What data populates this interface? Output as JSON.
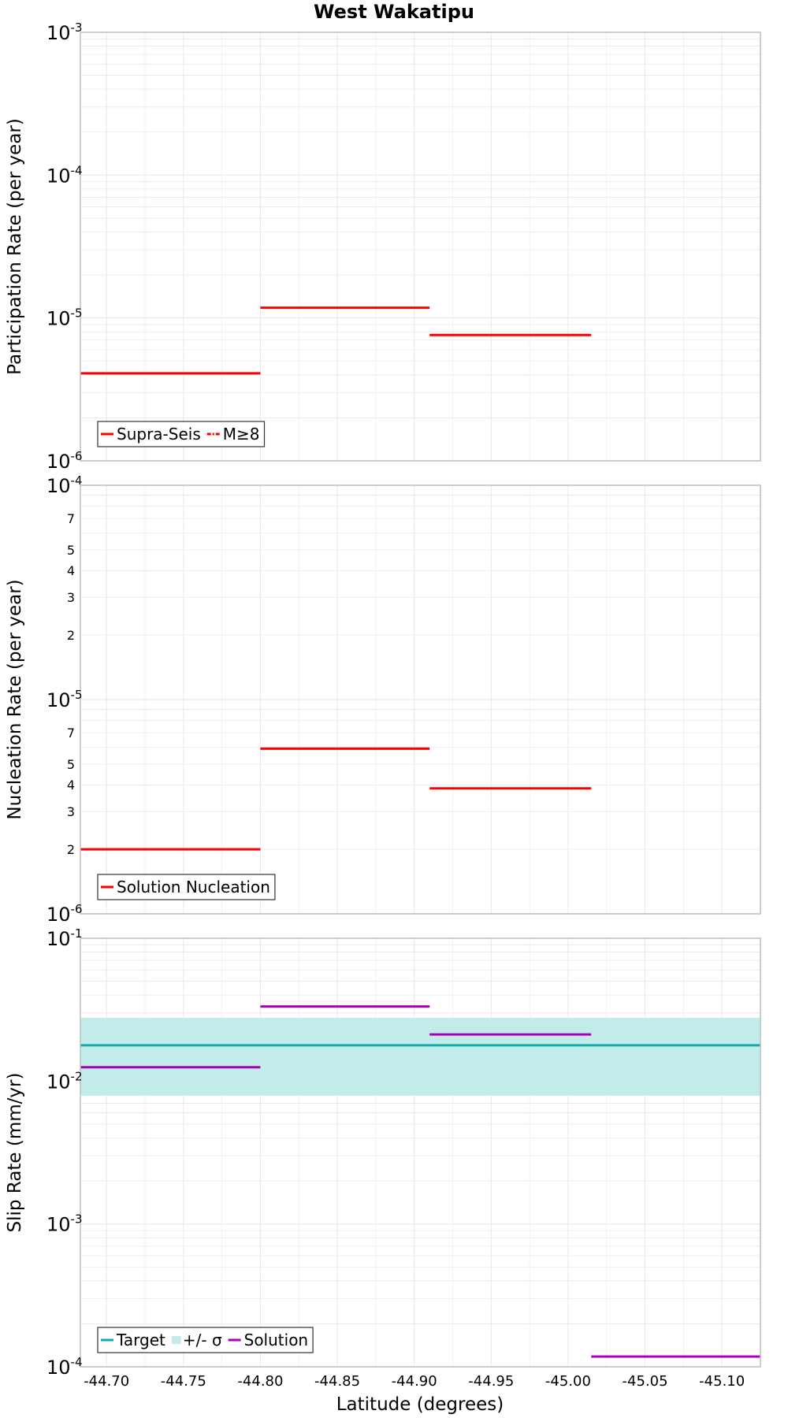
{
  "title": "West Wakatipu",
  "xlabel": "Latitude (degrees)",
  "x_axis": {
    "range": [
      -44.683,
      -45.125
    ],
    "ticks": [
      -44.7,
      -44.75,
      -44.8,
      -44.85,
      -44.9,
      -44.95,
      -45.0,
      -45.05,
      -45.1
    ],
    "tick_labels": [
      "-44.70",
      "-44.75",
      "-44.80",
      "-44.85",
      "-44.90",
      "-44.95",
      "-45.00",
      "-45.05",
      "-45.10"
    ]
  },
  "colors": {
    "red": "#ff0000",
    "teal": "#12aaaa",
    "band": "#c2ecea",
    "magenta": "#aa00bb",
    "grid": "#e8e8e8",
    "frame": "#bdbdbd"
  },
  "chart_data": [
    {
      "type": "line",
      "ylabel": "Participation Rate (per year)",
      "yscale": "log",
      "ylim": [
        1e-06,
        0.001
      ],
      "grid": true,
      "major_ticks": [
        {
          "value": 1e-06,
          "base": "10",
          "exp": "-6"
        },
        {
          "value": 1e-05,
          "base": "10",
          "exp": "-5"
        },
        {
          "value": 0.0001,
          "base": "10",
          "exp": "-4"
        },
        {
          "value": 0.001,
          "base": "10",
          "exp": "-3"
        }
      ],
      "minor_tick_labels": [],
      "legend": {
        "position": "bottom-left",
        "entries": [
          {
            "label": "Supra-Seis",
            "color": "#ff0000",
            "style": "solid"
          },
          {
            "label": "M≥8",
            "color": "#ff0000",
            "style": "dashdot"
          }
        ]
      },
      "series": [
        {
          "name": "Supra-Seis",
          "color": "#ff0000",
          "style": "step",
          "segments": [
            {
              "x": [
                -44.683,
                -44.8
              ],
              "y": 4.1e-06
            },
            {
              "x": [
                -44.8,
                -44.91
              ],
              "y": 1.18e-05
            },
            {
              "x": [
                -44.91,
                -45.015
              ],
              "y": 7.6e-06
            }
          ]
        }
      ]
    },
    {
      "type": "line",
      "ylabel": "Nucleation Rate (per year)",
      "yscale": "log",
      "ylim": [
        1e-06,
        0.0001
      ],
      "grid": true,
      "major_ticks": [
        {
          "value": 1e-06,
          "base": "10",
          "exp": "-6"
        },
        {
          "value": 1e-05,
          "base": "10",
          "exp": "-5"
        },
        {
          "value": 0.0001,
          "base": "10",
          "exp": "-4"
        }
      ],
      "minor_tick_labels": [
        {
          "value": 2e-06,
          "label": "2"
        },
        {
          "value": 3e-06,
          "label": "3"
        },
        {
          "value": 4e-06,
          "label": "4"
        },
        {
          "value": 5e-06,
          "label": "5"
        },
        {
          "value": 7e-06,
          "label": "7"
        },
        {
          "value": 2e-05,
          "label": "2"
        },
        {
          "value": 3e-05,
          "label": "3"
        },
        {
          "value": 4e-05,
          "label": "4"
        },
        {
          "value": 5e-05,
          "label": "5"
        },
        {
          "value": 7e-05,
          "label": "7"
        }
      ],
      "legend": {
        "position": "bottom-left",
        "entries": [
          {
            "label": "Solution Nucleation",
            "color": "#ff0000",
            "style": "solid"
          }
        ]
      },
      "series": [
        {
          "name": "Solution Nucleation",
          "color": "#ff0000",
          "style": "step",
          "segments": [
            {
              "x": [
                -44.683,
                -44.8
              ],
              "y": 2e-06
            },
            {
              "x": [
                -44.8,
                -44.91
              ],
              "y": 5.9e-06
            },
            {
              "x": [
                -44.91,
                -45.015
              ],
              "y": 3.85e-06
            }
          ]
        }
      ]
    },
    {
      "type": "line",
      "ylabel": "Slip Rate (mm/yr)",
      "yscale": "log",
      "ylim": [
        0.0001,
        0.1
      ],
      "grid": true,
      "major_ticks": [
        {
          "value": 0.0001,
          "base": "10",
          "exp": "-4"
        },
        {
          "value": 0.001,
          "base": "10",
          "exp": "-3"
        },
        {
          "value": 0.01,
          "base": "10",
          "exp": "-2"
        },
        {
          "value": 0.1,
          "base": "10",
          "exp": "-1"
        }
      ],
      "minor_tick_labels": [],
      "legend": {
        "position": "bottom-left",
        "entries": [
          {
            "label": "Target",
            "color": "#12aaaa",
            "style": "solid"
          },
          {
            "label": "+/- σ",
            "color": "#c2ecea",
            "style": "band"
          },
          {
            "label": "Solution",
            "color": "#aa00bb",
            "style": "solid"
          }
        ]
      },
      "bands": [
        {
          "name": "+/- σ",
          "color": "#c2ecea",
          "x": [
            -44.683,
            -45.125
          ],
          "y": [
            0.0079,
            0.0277
          ]
        }
      ],
      "series": [
        {
          "name": "Target",
          "color": "#12aaaa",
          "style": "step",
          "segments": [
            {
              "x": [
                -44.683,
                -45.125
              ],
              "y": 0.0178
            }
          ]
        },
        {
          "name": "Solution",
          "color": "#aa00bb",
          "style": "step",
          "segments": [
            {
              "x": [
                -44.683,
                -44.8
              ],
              "y": 0.0125
            },
            {
              "x": [
                -44.8,
                -44.91
              ],
              "y": 0.0333
            },
            {
              "x": [
                -44.91,
                -45.015
              ],
              "y": 0.0212
            },
            {
              "x": [
                -45.015,
                -45.125
              ],
              "y": 0.000118
            }
          ]
        }
      ]
    }
  ]
}
